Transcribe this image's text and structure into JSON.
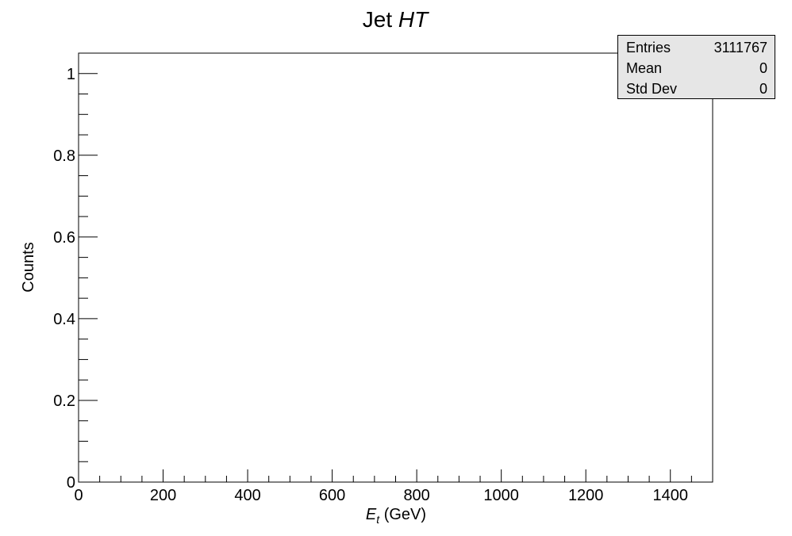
{
  "chart_data": {
    "type": "bar",
    "title": {
      "prefix": "Jet ",
      "italic": "HT"
    },
    "xlabel": {
      "italic_main": "E",
      "italic_sub": "t",
      "suffix": " (GeV)"
    },
    "ylabel": "Counts",
    "xlim": [
      0,
      1500
    ],
    "ylim": [
      0,
      1.05
    ],
    "x_ticks": [
      "0",
      "200",
      "400",
      "600",
      "800",
      "1000",
      "1200",
      "1400"
    ],
    "x_tick_values": [
      0,
      200,
      400,
      600,
      800,
      1000,
      1200,
      1400
    ],
    "x_minor_step": 50,
    "y_ticks": [
      "0",
      "0.2",
      "0.4",
      "0.6",
      "0.8",
      "1"
    ],
    "y_tick_values": [
      0,
      0.2,
      0.4,
      0.6,
      0.8,
      1.0
    ],
    "y_minor_step": 0.05,
    "grid": false,
    "series": [],
    "stats": [
      {
        "label": "Entries",
        "value": "3111767"
      },
      {
        "label": "Mean",
        "value": "0"
      },
      {
        "label": "Std Dev",
        "value": "0"
      }
    ]
  },
  "colors": {
    "axis": "#000000",
    "background": "#ffffff",
    "stats_box_fill": "#e6e6e6"
  }
}
